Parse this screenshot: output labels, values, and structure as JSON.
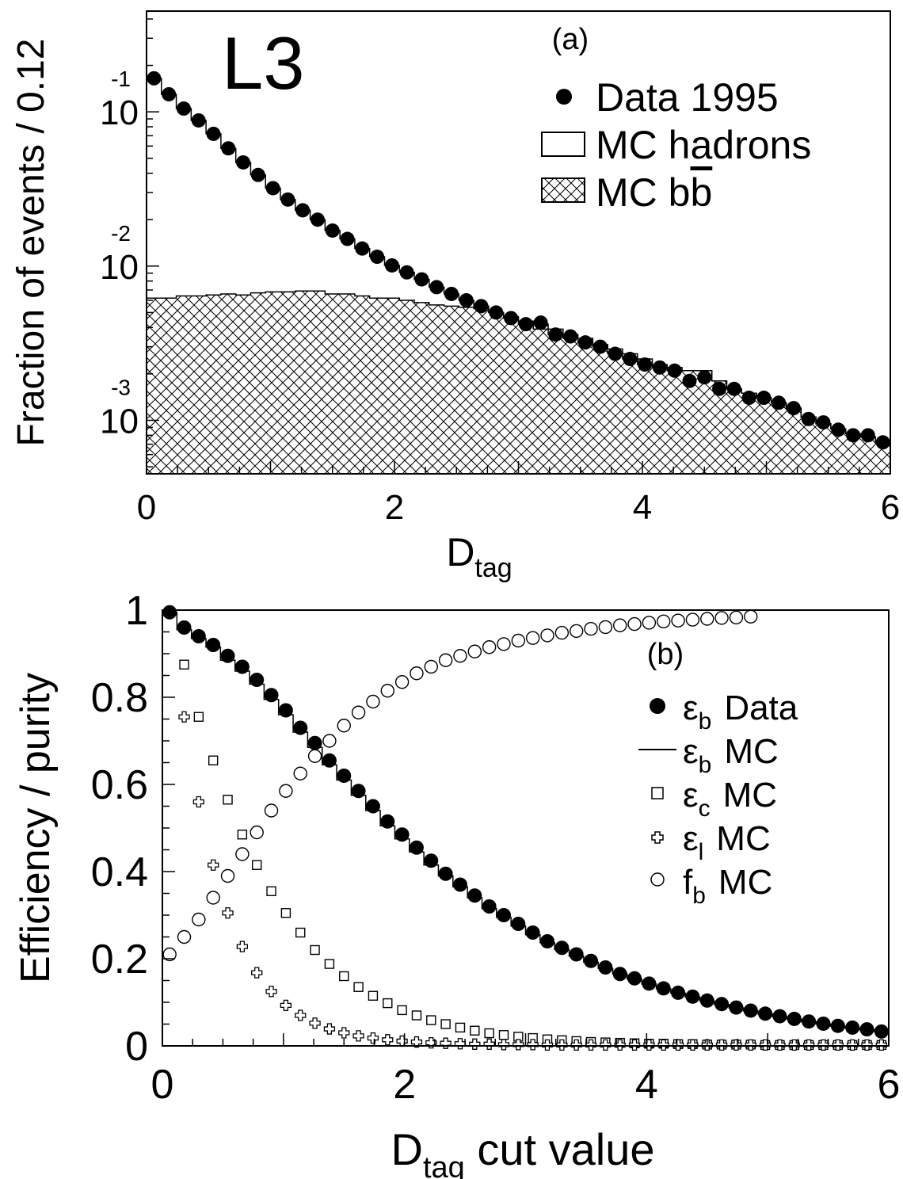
{
  "chart_data": [
    {
      "panel_label": "(a)",
      "experiment_label": "L3",
      "type": "line",
      "ylabel": "Fraction of events / 0.12",
      "xlabel": "D",
      "xlabel_sub": "tag",
      "xlim": [
        0,
        6
      ],
      "ylim": [
        0.00045,
        0.45
      ],
      "log_y": true,
      "x_tick_labels": [
        "0",
        "2",
        "4",
        "6"
      ],
      "y_tick_labels": [
        {
          "base": "10",
          "exp": "-1",
          "value": 0.1
        },
        {
          "base": "10",
          "exp": "-2",
          "value": 0.01
        },
        {
          "base": "10",
          "exp": "-3",
          "value": 0.001
        }
      ],
      "legend": {
        "position": "top-right",
        "entries": [
          {
            "marker": "filled-circle",
            "label": "Data 1995"
          },
          {
            "marker": "open-box",
            "label": "MC hadrons"
          },
          {
            "marker": "hatched-box",
            "label": "MC b",
            "label_bar": "b"
          }
        ]
      },
      "series": [
        {
          "name": "Data 1995",
          "style": "filled-circle",
          "x": [
            0.06,
            0.18,
            0.3,
            0.42,
            0.54,
            0.66,
            0.78,
            0.9,
            1.02,
            1.14,
            1.26,
            1.38,
            1.5,
            1.62,
            1.74,
            1.86,
            1.98,
            2.1,
            2.22,
            2.34,
            2.46,
            2.58,
            2.7,
            2.82,
            2.94,
            3.06,
            3.18,
            3.3,
            3.42,
            3.54,
            3.66,
            3.78,
            3.9,
            4.02,
            4.14,
            4.26,
            4.38,
            4.5,
            4.62,
            4.74,
            4.86,
            4.98,
            5.1,
            5.22,
            5.34,
            5.46,
            5.58,
            5.7,
            5.82,
            5.94
          ],
          "y": [
            0.165,
            0.13,
            0.105,
            0.088,
            0.072,
            0.058,
            0.047,
            0.039,
            0.032,
            0.027,
            0.023,
            0.02,
            0.017,
            0.015,
            0.013,
            0.0115,
            0.0101,
            0.0091,
            0.0082,
            0.0073,
            0.0066,
            0.006,
            0.0055,
            0.005,
            0.0046,
            0.0042,
            0.0043,
            0.0036,
            0.0035,
            0.0032,
            0.003,
            0.0027,
            0.0025,
            0.0023,
            0.0022,
            0.0021,
            0.0018,
            0.0019,
            0.0016,
            0.0016,
            0.0014,
            0.0014,
            0.0013,
            0.0012,
            0.00102,
            0.00097,
            0.00087,
            0.0008,
            0.0008,
            0.00072
          ]
        },
        {
          "name": "MC hadrons",
          "style": "step",
          "x": [
            0.06,
            0.18,
            0.3,
            0.42,
            0.54,
            0.66,
            0.78,
            0.9,
            1.02,
            1.14,
            1.26,
            1.38,
            1.5,
            1.62,
            1.74,
            1.86,
            1.98,
            2.1,
            2.22,
            2.34,
            2.46,
            2.58,
            2.7,
            2.82,
            2.94,
            3.06,
            3.18,
            3.3,
            3.42,
            3.54,
            3.66,
            3.78,
            3.9,
            4.02,
            4.14,
            4.26,
            4.38,
            4.5,
            4.62,
            4.74,
            4.86,
            4.98,
            5.1,
            5.22,
            5.34,
            5.46,
            5.58,
            5.7,
            5.82,
            5.94
          ],
          "y": [
            0.165,
            0.13,
            0.105,
            0.088,
            0.072,
            0.058,
            0.047,
            0.039,
            0.032,
            0.027,
            0.023,
            0.02,
            0.017,
            0.015,
            0.013,
            0.0115,
            0.0101,
            0.0091,
            0.0082,
            0.0073,
            0.0066,
            0.006,
            0.0055,
            0.005,
            0.0046,
            0.0042,
            0.0039,
            0.0036,
            0.0034,
            0.0032,
            0.003,
            0.0027,
            0.0025,
            0.0023,
            0.0022,
            0.0021,
            0.0021,
            0.0021,
            0.0018,
            0.0016,
            0.0015,
            0.0014,
            0.0013,
            0.0012,
            0.00105,
            0.00095,
            0.00088,
            0.00082,
            0.00078,
            0.00072
          ]
        },
        {
          "name": "MC b",
          "style": "hatched-step",
          "x": [
            0.06,
            0.18,
            0.3,
            0.42,
            0.54,
            0.66,
            0.78,
            0.9,
            1.02,
            1.14,
            1.26,
            1.38,
            1.5,
            1.62,
            1.74,
            1.86,
            1.98,
            2.1,
            2.22,
            2.34,
            2.46,
            2.58,
            2.7,
            2.82,
            2.94,
            3.06,
            3.18,
            3.3,
            3.42,
            3.54,
            3.66,
            3.78,
            3.9,
            4.02,
            4.14,
            4.26,
            4.38,
            4.5,
            4.62,
            4.74,
            4.86,
            4.98,
            5.1,
            5.22,
            5.34,
            5.46,
            5.58,
            5.7,
            5.82,
            5.94
          ],
          "y": [
            0.0062,
            0.0062,
            0.0064,
            0.0064,
            0.0065,
            0.0066,
            0.0065,
            0.0067,
            0.0068,
            0.0068,
            0.0069,
            0.0069,
            0.0066,
            0.0066,
            0.0064,
            0.0062,
            0.0062,
            0.006,
            0.0058,
            0.0056,
            0.0055,
            0.0054,
            0.0053,
            0.005,
            0.0047,
            0.0044,
            0.0042,
            0.0039,
            0.0036,
            0.0034,
            0.0031,
            0.0029,
            0.0027,
            0.0025,
            0.0023,
            0.0022,
            0.0021,
            0.0021,
            0.0018,
            0.0016,
            0.0015,
            0.0014,
            0.0013,
            0.0012,
            0.00105,
            0.00095,
            0.00088,
            0.00082,
            0.00078,
            0.00072
          ]
        }
      ]
    },
    {
      "panel_label": "(b)",
      "type": "scatter",
      "ylabel": "Efficiency / purity",
      "xlabel": "D",
      "xlabel_sub": "tag",
      "xlabel_suffix": " cut value",
      "xlim": [
        0,
        6
      ],
      "ylim": [
        0,
        1
      ],
      "log_y": false,
      "x_tick_labels": [
        "0",
        "2",
        "4",
        "6"
      ],
      "y_tick_labels": [
        "0",
        "0.2",
        "0.4",
        "0.6",
        "0.8",
        "1"
      ],
      "legend": {
        "position": "right",
        "entries": [
          {
            "marker": "filled-circle",
            "symbol": "ε",
            "sub": "b",
            "label": "Data"
          },
          {
            "marker": "line",
            "symbol": "ε",
            "sub": "b",
            "label": "MC"
          },
          {
            "marker": "open-square",
            "symbol": "ε",
            "sub": "c",
            "label": "MC"
          },
          {
            "marker": "open-cross",
            "symbol": "ε",
            "sub": "l",
            "label": "MC"
          },
          {
            "marker": "open-circle",
            "symbol": "f",
            "sub": "b",
            "label": "MC"
          }
        ]
      },
      "x": [
        0.06,
        0.18,
        0.3,
        0.42,
        0.54,
        0.66,
        0.78,
        0.9,
        1.02,
        1.14,
        1.26,
        1.38,
        1.5,
        1.62,
        1.74,
        1.86,
        1.98,
        2.1,
        2.22,
        2.34,
        2.46,
        2.58,
        2.7,
        2.82,
        2.94,
        3.06,
        3.18,
        3.3,
        3.42,
        3.54,
        3.66,
        3.78,
        3.9,
        4.02,
        4.14,
        4.26,
        4.38,
        4.5,
        4.62,
        4.74,
        4.86,
        4.98,
        5.1,
        5.22,
        5.34,
        5.46,
        5.58,
        5.7,
        5.82,
        5.94
      ],
      "series": [
        {
          "name": "εb Data",
          "style": "filled-circle",
          "values": [
            0.995,
            0.96,
            0.94,
            0.92,
            0.895,
            0.87,
            0.84,
            0.805,
            0.77,
            0.73,
            0.695,
            0.655,
            0.62,
            0.585,
            0.55,
            0.515,
            0.485,
            0.455,
            0.425,
            0.395,
            0.37,
            0.345,
            0.32,
            0.3,
            0.28,
            0.26,
            0.24,
            0.225,
            0.21,
            0.195,
            0.18,
            0.165,
            0.155,
            0.143,
            0.132,
            0.122,
            0.113,
            0.104,
            0.096,
            0.088,
            0.081,
            0.074,
            0.068,
            0.062,
            0.056,
            0.051,
            0.046,
            0.042,
            0.038,
            0.033
          ]
        },
        {
          "name": "εb MC",
          "style": "step",
          "values": [
            0.995,
            0.955,
            0.935,
            0.915,
            0.885,
            0.86,
            0.83,
            0.795,
            0.76,
            0.72,
            0.685,
            0.645,
            0.61,
            0.575,
            0.54,
            0.505,
            0.475,
            0.445,
            0.415,
            0.39,
            0.365,
            0.34,
            0.315,
            0.295,
            0.275,
            0.255,
            0.237,
            0.221,
            0.206,
            0.192,
            0.178,
            0.165,
            0.153,
            0.142,
            0.131,
            0.121,
            0.112,
            0.103,
            0.095,
            0.087,
            0.08,
            0.073,
            0.067,
            0.061,
            0.055,
            0.05,
            0.045,
            0.041,
            0.037,
            0.033
          ]
        },
        {
          "name": "εc MC",
          "style": "open-square",
          "values": [
            0.995,
            0.875,
            0.755,
            0.655,
            0.565,
            0.485,
            0.415,
            0.355,
            0.305,
            0.26,
            0.22,
            0.188,
            0.16,
            0.135,
            0.115,
            0.098,
            0.082,
            0.07,
            0.059,
            0.05,
            0.042,
            0.035,
            0.029,
            0.025,
            0.021,
            0.018,
            0.015,
            0.013,
            0.011,
            0.009,
            0.008,
            0.007,
            0.006,
            0.005,
            0.005,
            0.004,
            0.004,
            0.003,
            0.003,
            0.003,
            0.003,
            0.002,
            0.002,
            0.002,
            0.002,
            0.002,
            0.002,
            0.002,
            0.002,
            0.002
          ]
        },
        {
          "name": "εl MC",
          "style": "open-cross",
          "values": [
            0.995,
            0.755,
            0.56,
            0.415,
            0.305,
            0.228,
            0.168,
            0.125,
            0.093,
            0.07,
            0.052,
            0.039,
            0.03,
            0.023,
            0.018,
            0.014,
            0.011,
            0.009,
            0.007,
            0.006,
            0.005,
            0.004,
            0.004,
            0.003,
            0.003,
            0.003,
            0.002,
            0.002,
            0.002,
            0.002,
            0.002,
            0.002,
            0.002,
            0.002,
            0.002,
            0.002,
            0.002,
            0.002,
            0.002,
            0.002,
            0.002,
            0.002,
            0.002,
            0.002,
            0.002,
            0.002,
            0.002,
            0.002,
            0.002,
            0.002
          ]
        },
        {
          "name": "fb MC",
          "style": "open-circle",
          "values": [
            0.21,
            0.25,
            0.29,
            0.34,
            0.39,
            0.44,
            0.49,
            0.54,
            0.585,
            0.625,
            0.665,
            0.7,
            0.735,
            0.765,
            0.79,
            0.815,
            0.835,
            0.855,
            0.87,
            0.885,
            0.895,
            0.905,
            0.915,
            0.922,
            0.93,
            0.936,
            0.942,
            0.948,
            0.952,
            0.957,
            0.961,
            0.965,
            0.968,
            0.971,
            0.974,
            0.976,
            0.978,
            0.98,
            0.982,
            0.983,
            0.985,
            null,
            null,
            null,
            null,
            null,
            null,
            null,
            null,
            null
          ]
        }
      ]
    }
  ]
}
